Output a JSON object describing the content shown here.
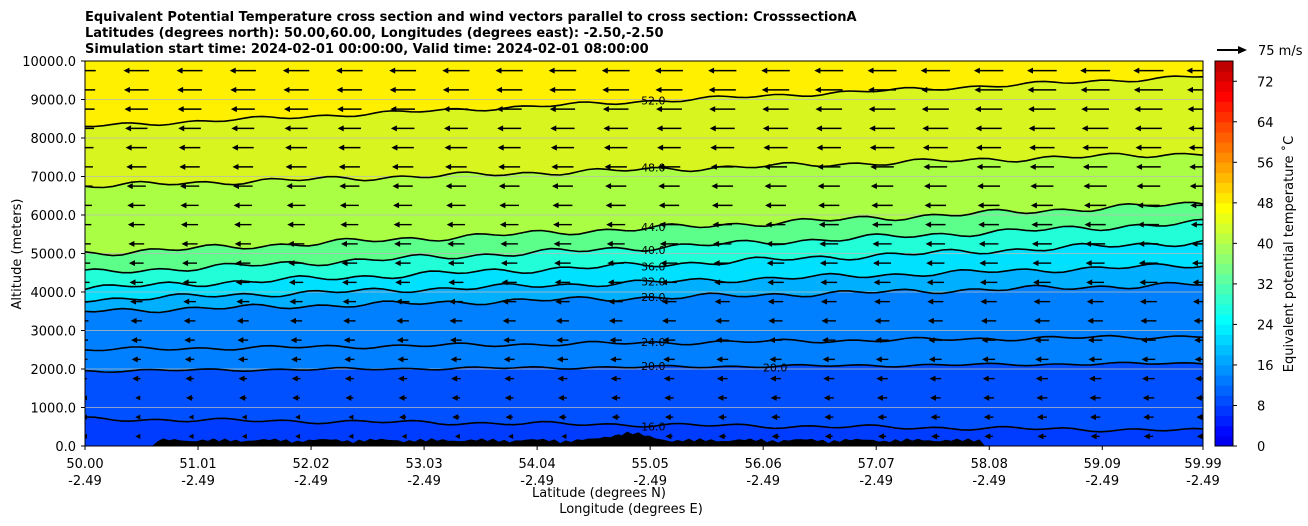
{
  "chart_data": {
    "type": "contourf",
    "title_lines": [
      "Equivalent Potential Temperature cross section and wind vectors parallel to cross section: CrosssectionA",
      "Latitudes (degrees north): 50.00,60.00, Longitudes (degrees east): -2.50,-2.50",
      "Simulation start time: 2024-02-01 00:00:00, Valid time: 2024-02-01 08:00:00"
    ],
    "xlabel_lat": "Latitude (degrees N)",
    "xlabel_lon": "Longitude (degrees E)",
    "ylabel": "Altitude (meters)",
    "colorbar_label": "Equivalent potential temperature ˚C",
    "quiver_key": "75 m/s",
    "x_ticks_lat": [
      "50.00",
      "51.01",
      "52.02",
      "53.03",
      "54.04",
      "55.05",
      "56.06",
      "57.07",
      "58.08",
      "59.09",
      "59.99"
    ],
    "x_ticks_lon": [
      "-2.49",
      "-2.49",
      "-2.49",
      "-2.49",
      "-2.49",
      "-2.49",
      "-2.49",
      "-2.49",
      "-2.49",
      "-2.49",
      "-2.49"
    ],
    "x_range": [
      50.0,
      59.99
    ],
    "y_ticks": [
      "0.0",
      "1000.0",
      "2000.0",
      "3000.0",
      "4000.0",
      "5000.0",
      "6000.0",
      "7000.0",
      "8000.0",
      "9000.0",
      "10000.0"
    ],
    "y_range": [
      0,
      10000
    ],
    "colorbar_ticks": [
      "0",
      "8",
      "16",
      "24",
      "32",
      "40",
      "48",
      "56",
      "64",
      "72"
    ],
    "colorbar_range": [
      0,
      76
    ],
    "contour_levels": [
      {
        "value": 16,
        "label": "16.0"
      },
      {
        "value": 20,
        "label": "20.0"
      },
      {
        "value": 24,
        "label": "24.0"
      },
      {
        "value": 28,
        "label": "28.0"
      },
      {
        "value": 32,
        "label": "32.0"
      },
      {
        "value": 36,
        "label": "36.0"
      },
      {
        "value": 40,
        "label": "40.0"
      },
      {
        "value": 44,
        "label": "44.0"
      },
      {
        "value": 48,
        "label": "48.0"
      },
      {
        "value": 52,
        "label": "52.0"
      }
    ],
    "contour_label_20_extra": "20.0",
    "wind_vectors": "easterly (westward), increasing with altitude",
    "colors": {
      "y_ge_48": "#fff000",
      "c44": "#d8f520",
      "c40": "#aaff44",
      "c36": "#5cff8a",
      "c32": "#22ffd8",
      "c28": "#00e0ff",
      "c24": "#00b0ff",
      "c20": "#0080ff",
      "c16": "#0050ff",
      "terrain": "#000000"
    }
  }
}
